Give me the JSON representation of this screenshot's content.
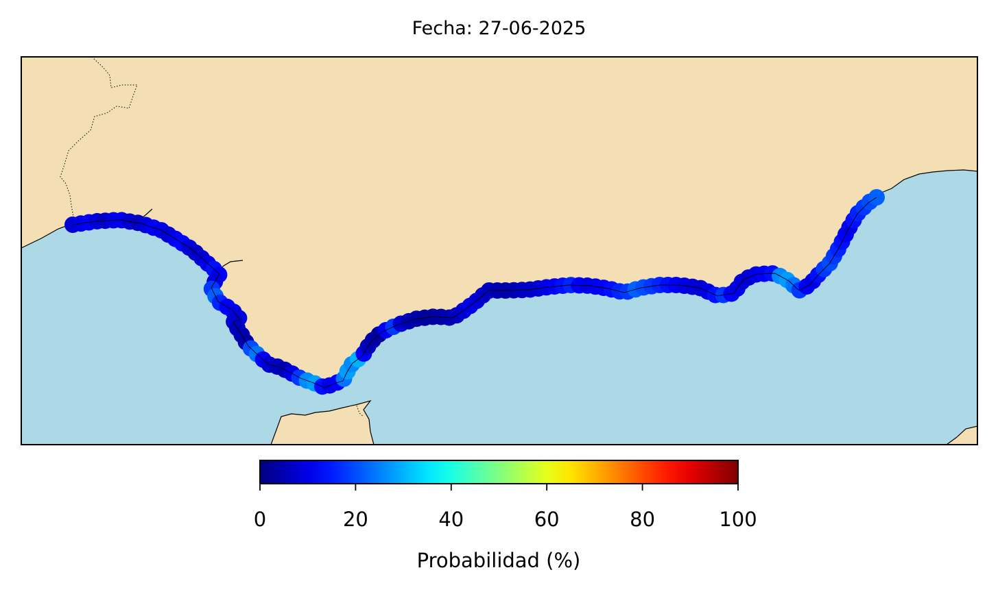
{
  "figure": {
    "title": "Fecha: 27-06-2025"
  },
  "colors": {
    "land": "#f4deb3",
    "sea": "#add8e6",
    "border": "#000000",
    "colormap": "jet"
  },
  "colorbar": {
    "label": "Probabilidad (%)",
    "min": 0,
    "max": 100,
    "ticks": [
      "0",
      "20",
      "40",
      "60",
      "80",
      "100"
    ]
  },
  "coastal_points": {
    "note_units": "probability percent per coastal point, sampled west to east along the coast",
    "probabilities": [
      8,
      10,
      12,
      9,
      7,
      10,
      11,
      8,
      6,
      9,
      12,
      10,
      8,
      11,
      13,
      9,
      7,
      8,
      10,
      14,
      12,
      9,
      18,
      22,
      16,
      12,
      10,
      9,
      8,
      6,
      5,
      4,
      20,
      24,
      12,
      8,
      6,
      5,
      10,
      18,
      26,
      28,
      14,
      10,
      12,
      24,
      28,
      26,
      30,
      12,
      6,
      4,
      3,
      12,
      18,
      8,
      5,
      4,
      3,
      3,
      4,
      5,
      6,
      8,
      10,
      9,
      7,
      6,
      5,
      4,
      5,
      6,
      7,
      8,
      10,
      12,
      14,
      16,
      12,
      10,
      11,
      12,
      14,
      16,
      18,
      22,
      20,
      18,
      16,
      14,
      12,
      10,
      9,
      8,
      10,
      14,
      18,
      12,
      10,
      9,
      8,
      10,
      12,
      14,
      26,
      28,
      24,
      18,
      12,
      10,
      14,
      18,
      20,
      18,
      16,
      14,
      12,
      10,
      14,
      16,
      18,
      20,
      22
    ]
  }
}
